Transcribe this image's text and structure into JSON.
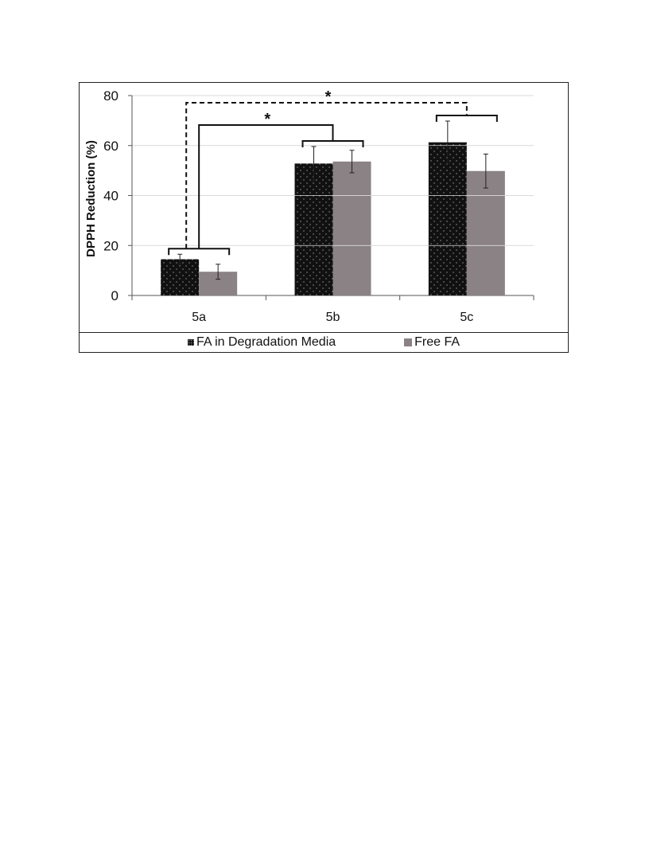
{
  "chart_data": {
    "type": "bar",
    "categories": [
      "5a",
      "5b",
      "5c"
    ],
    "series": [
      {
        "name": "FA in Degradation Media",
        "values": [
          14.5,
          52.8,
          61.3
        ],
        "errors": [
          2.0,
          6.8,
          8.5
        ],
        "color": "#111111",
        "pattern": "dotted"
      },
      {
        "name": "Free FA",
        "values": [
          9.5,
          53.6,
          49.8
        ],
        "errors": [
          3.0,
          4.5,
          6.8
        ],
        "color": "#8a8285",
        "pattern": "solid"
      }
    ],
    "xlabel": "",
    "ylabel": "DPPH Reduction (%)",
    "ylim": [
      0,
      80
    ],
    "yticks": [
      "0",
      "20",
      "40",
      "60",
      "80"
    ],
    "grid": true,
    "legend_position": "bottom",
    "significance": [
      {
        "label": "*",
        "from": "5a",
        "to": "5b",
        "style": "solid"
      },
      {
        "label": "*",
        "from": "5a",
        "to": "5c",
        "style": "dashed"
      }
    ]
  }
}
